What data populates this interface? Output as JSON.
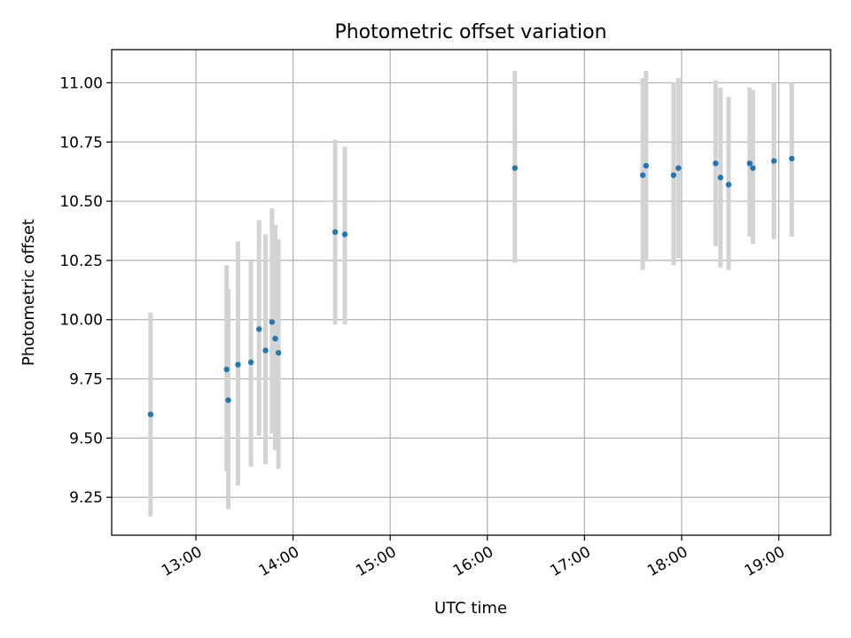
{
  "chart_data": {
    "type": "scatter",
    "title": "Photometric offset variation",
    "xlabel": "UTC time",
    "ylabel": "Photometric offset",
    "x_unit": "UTC time (HH:MM)",
    "xlim": [
      "12:08",
      "19:32"
    ],
    "ylim": [
      9.09,
      11.14
    ],
    "xticks": [
      "13:00",
      "14:00",
      "15:00",
      "16:00",
      "17:00",
      "18:00",
      "19:00"
    ],
    "yticks": [
      "9.25",
      "9.50",
      "9.75",
      "10.00",
      "10.25",
      "10.50",
      "10.75",
      "11.00"
    ],
    "grid": true,
    "legend": "none",
    "colors": {
      "points": "#1f77b4",
      "error_bars": "#d3d3d3",
      "grid": "#b0b0b0"
    },
    "points": [
      {
        "x": "12:32",
        "y": 9.6,
        "ylo": 9.17,
        "yhi": 10.03
      },
      {
        "x": "13:19",
        "y": 9.79,
        "ylo": 9.36,
        "yhi": 10.23
      },
      {
        "x": "13:20",
        "y": 9.66,
        "ylo": 9.2,
        "yhi": 10.13
      },
      {
        "x": "13:26",
        "y": 9.81,
        "ylo": 9.3,
        "yhi": 10.33
      },
      {
        "x": "13:34",
        "y": 9.82,
        "ylo": 9.38,
        "yhi": 10.25
      },
      {
        "x": "13:39",
        "y": 9.96,
        "ylo": 9.51,
        "yhi": 10.42
      },
      {
        "x": "13:43",
        "y": 9.87,
        "ylo": 9.39,
        "yhi": 10.36
      },
      {
        "x": "13:47",
        "y": 9.99,
        "ylo": 9.52,
        "yhi": 10.47
      },
      {
        "x": "13:49",
        "y": 9.92,
        "ylo": 9.45,
        "yhi": 10.4
      },
      {
        "x": "13:51",
        "y": 9.86,
        "ylo": 9.37,
        "yhi": 10.34
      },
      {
        "x": "14:26",
        "y": 10.37,
        "ylo": 9.98,
        "yhi": 10.76
      },
      {
        "x": "14:32",
        "y": 10.36,
        "ylo": 9.98,
        "yhi": 10.73
      },
      {
        "x": "16:17",
        "y": 10.64,
        "ylo": 10.24,
        "yhi": 11.05
      },
      {
        "x": "17:36",
        "y": 10.61,
        "ylo": 10.21,
        "yhi": 11.02
      },
      {
        "x": "17:38",
        "y": 10.65,
        "ylo": 10.25,
        "yhi": 11.05
      },
      {
        "x": "17:55",
        "y": 10.61,
        "ylo": 10.23,
        "yhi": 11.0
      },
      {
        "x": "17:58",
        "y": 10.64,
        "ylo": 10.26,
        "yhi": 11.02
      },
      {
        "x": "18:21",
        "y": 10.66,
        "ylo": 10.31,
        "yhi": 11.01
      },
      {
        "x": "18:24",
        "y": 10.6,
        "ylo": 10.22,
        "yhi": 10.98
      },
      {
        "x": "18:29",
        "y": 10.57,
        "ylo": 10.21,
        "yhi": 10.94
      },
      {
        "x": "18:42",
        "y": 10.66,
        "ylo": 10.35,
        "yhi": 10.98
      },
      {
        "x": "18:44",
        "y": 10.64,
        "ylo": 10.32,
        "yhi": 10.97
      },
      {
        "x": "18:57",
        "y": 10.67,
        "ylo": 10.34,
        "yhi": 11.0
      },
      {
        "x": "19:08",
        "y": 10.68,
        "ylo": 10.35,
        "yhi": 11.0
      }
    ]
  }
}
